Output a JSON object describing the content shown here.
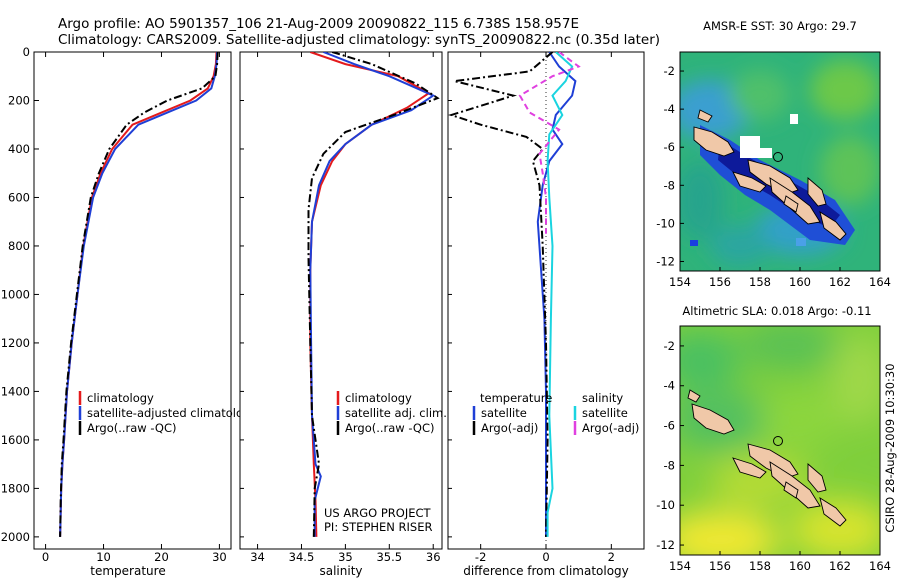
{
  "header": {
    "line1": "Argo profile: AO 5901357_106 21-Aug-2009 20090822_115 6.738S 158.957E",
    "line2": "Climatology: CARS2009. Satellite-adjusted climatology: synTS_20090822.nc (0.35d later)"
  },
  "side_label": "CSIRO 28-Aug-2009 10:30:30",
  "colors": {
    "climatology": "#e41a1c",
    "satellite": "#1f3fd6",
    "argo": "#000000",
    "salinity_satellite": "#1ad4e0",
    "salinity_argo": "#e040e0",
    "land": "#f0c8a8"
  },
  "chart_data": [
    {
      "type": "line",
      "name": "temperature",
      "xlabel": "temperature",
      "xlim": [
        -2,
        32
      ],
      "ylim": [
        2050,
        0
      ],
      "x_ticks": [
        0,
        10,
        20,
        30
      ],
      "y_ticks": [
        0,
        200,
        400,
        600,
        800,
        1000,
        1200,
        1400,
        1600,
        1800,
        2000
      ],
      "legend": [
        "climatology",
        "satellite-adjusted climatology",
        "Argo(..raw -QC)"
      ],
      "series": [
        {
          "name": "climatology",
          "color": "#e41a1c",
          "style": "solid",
          "x": [
            29.5,
            29.4,
            29.0,
            28.0,
            25.0,
            20.0,
            15.0,
            11.5,
            9.5,
            8.0,
            6.5,
            5.5,
            4.5,
            3.7,
            3.2,
            2.9,
            2.7,
            2.6,
            2.5
          ],
          "y": [
            0,
            50,
            100,
            150,
            200,
            250,
            300,
            400,
            500,
            600,
            800,
            1000,
            1200,
            1400,
            1600,
            1700,
            1800,
            1900,
            2000
          ]
        },
        {
          "name": "satellite-adjusted climatology",
          "color": "#1f3fd6",
          "style": "solid",
          "x": [
            29.6,
            29.5,
            29.2,
            28.6,
            26.0,
            21.0,
            16.0,
            12.0,
            9.8,
            8.2,
            6.6,
            5.5,
            4.5,
            3.7,
            3.2,
            2.9,
            2.7,
            2.6,
            2.5
          ],
          "y": [
            0,
            50,
            100,
            150,
            200,
            250,
            300,
            400,
            500,
            600,
            800,
            1000,
            1200,
            1400,
            1600,
            1700,
            1800,
            1900,
            2000
          ]
        },
        {
          "name": "Argo(..raw -QC)",
          "color": "#000000",
          "style": "dashdot",
          "x": [
            29.7,
            29.6,
            29.3,
            27.0,
            21.0,
            17.0,
            14.0,
            11.0,
            9.2,
            7.8,
            6.4,
            5.4,
            4.4,
            3.6,
            3.1,
            2.8,
            2.6,
            2.5
          ],
          "y": [
            0,
            50,
            100,
            150,
            200,
            250,
            300,
            400,
            500,
            600,
            800,
            1000,
            1200,
            1400,
            1600,
            1700,
            1850,
            2000
          ]
        }
      ]
    },
    {
      "type": "line",
      "name": "salinity",
      "xlabel": "salinity",
      "xlim": [
        33.8,
        36.1
      ],
      "ylim": [
        2050,
        0
      ],
      "x_ticks": [
        34,
        34.5,
        35,
        35.5,
        36
      ],
      "legend": [
        "climatology",
        "satellite adj. clim.",
        "Argo(..raw -QC)"
      ],
      "annotation": [
        "US ARGO PROJECT",
        "PI: STEPHEN RISER"
      ],
      "series": [
        {
          "name": "climatology",
          "color": "#e41a1c",
          "style": "solid",
          "x": [
            34.6,
            35.0,
            35.6,
            35.95,
            35.7,
            35.3,
            35.0,
            34.85,
            34.72,
            34.62,
            34.6,
            34.6,
            34.62,
            34.64,
            34.66,
            34.67
          ],
          "y": [
            0,
            50,
            100,
            170,
            230,
            300,
            380,
            450,
            550,
            700,
            900,
            1200,
            1500,
            1700,
            1850,
            2000
          ]
        },
        {
          "name": "satellite adj. clim.",
          "color": "#1f3fd6",
          "style": "solid",
          "x": [
            34.75,
            35.1,
            35.5,
            36.0,
            35.75,
            35.3,
            35.0,
            34.82,
            34.7,
            34.62,
            34.6,
            34.61,
            34.62,
            34.66,
            34.72,
            34.65,
            34.65
          ],
          "y": [
            0,
            50,
            100,
            180,
            240,
            300,
            380,
            450,
            550,
            700,
            900,
            1200,
            1500,
            1700,
            1750,
            1850,
            2000
          ]
        },
        {
          "name": "Argo(..raw -QC)",
          "color": "#000000",
          "style": "dashdot",
          "x": [
            34.85,
            35.3,
            35.8,
            36.05,
            35.55,
            35.0,
            34.75,
            34.62,
            34.58,
            34.58,
            34.6,
            34.62,
            34.7,
            34.65,
            34.64
          ],
          "y": [
            0,
            50,
            130,
            190,
            260,
            330,
            420,
            520,
            650,
            850,
            1200,
            1500,
            1700,
            1800,
            2000
          ]
        }
      ]
    },
    {
      "type": "line",
      "name": "difference",
      "xlabel": "difference from climatology",
      "xlim": [
        -3,
        3
      ],
      "ylim": [
        2050,
        0
      ],
      "x_ticks": [
        -2,
        0,
        2
      ],
      "legend": {
        "temperature": [
          "temperature",
          "satellite",
          "Argo(-adj)"
        ],
        "salinity": [
          "salinity",
          "satellite",
          "Argo(-adj)"
        ]
      },
      "series": [
        {
          "name": "temperature satellite",
          "color": "#1f3fd6",
          "style": "solid",
          "x": [
            0.1,
            0.4,
            0.9,
            0.8,
            0.3,
            0.2,
            0.5,
            0.1,
            -0.1,
            -0.25,
            -0.15,
            -0.05,
            0,
            0,
            0
          ],
          "y": [
            0,
            60,
            120,
            180,
            260,
            320,
            380,
            450,
            550,
            700,
            900,
            1100,
            1400,
            1700,
            2000
          ]
        },
        {
          "name": "temperature Argo(-adj)",
          "color": "#000000",
          "style": "dashdot",
          "x": [
            0.2,
            -0.5,
            -2.8,
            -1.0,
            -2.9,
            -2.0,
            -0.6,
            -0.1,
            -0.4,
            -0.2,
            -0.1,
            0,
            0.05,
            0
          ],
          "y": [
            0,
            80,
            120,
            180,
            260,
            300,
            350,
            400,
            450,
            550,
            800,
            1200,
            1600,
            2000
          ]
        },
        {
          "name": "salinity satellite",
          "color": "#1ad4e0",
          "style": "solid",
          "x": [
            0.3,
            0.8,
            0.6,
            0.2,
            0.5,
            0.1,
            0.05,
            0.1,
            0.2,
            0.15,
            0.1,
            0.2,
            0.05,
            0.05
          ],
          "y": [
            0,
            60,
            120,
            180,
            260,
            340,
            450,
            600,
            800,
            1100,
            1500,
            1800,
            1900,
            2000
          ]
        },
        {
          "name": "salinity Argo(-adj)",
          "color": "#e040e0",
          "style": "dashed",
          "x": [
            0.4,
            1.0,
            0.2,
            -0.8,
            -0.5,
            0.4,
            -0.2,
            -0.1,
            0,
            0
          ],
          "y": [
            0,
            60,
            100,
            180,
            250,
            320,
            420,
            500,
            600,
            750
          ]
        }
      ]
    },
    {
      "type": "heatmap",
      "name": "AMSR-E SST",
      "title": "AMSR-E SST: 30 Argo: 29.7",
      "xlim": [
        154,
        164
      ],
      "ylim": [
        -12.5,
        -1
      ],
      "x_ticks": [
        154,
        156,
        158,
        160,
        162,
        164
      ],
      "y_ticks": [
        -2,
        -4,
        -6,
        -8,
        -10,
        -12
      ],
      "argo_position": [
        158.957,
        -6.738
      ]
    },
    {
      "type": "heatmap",
      "name": "Altimetric SLA",
      "title": "Altimetric SLA: 0.018 Argo: -0.11",
      "xlim": [
        154,
        164
      ],
      "ylim": [
        -12.5,
        -1
      ],
      "x_ticks": [
        154,
        156,
        158,
        160,
        162,
        164
      ],
      "y_ticks": [
        -2,
        -4,
        -6,
        -8,
        -10,
        -12
      ],
      "argo_position": [
        158.957,
        -6.738
      ]
    }
  ]
}
